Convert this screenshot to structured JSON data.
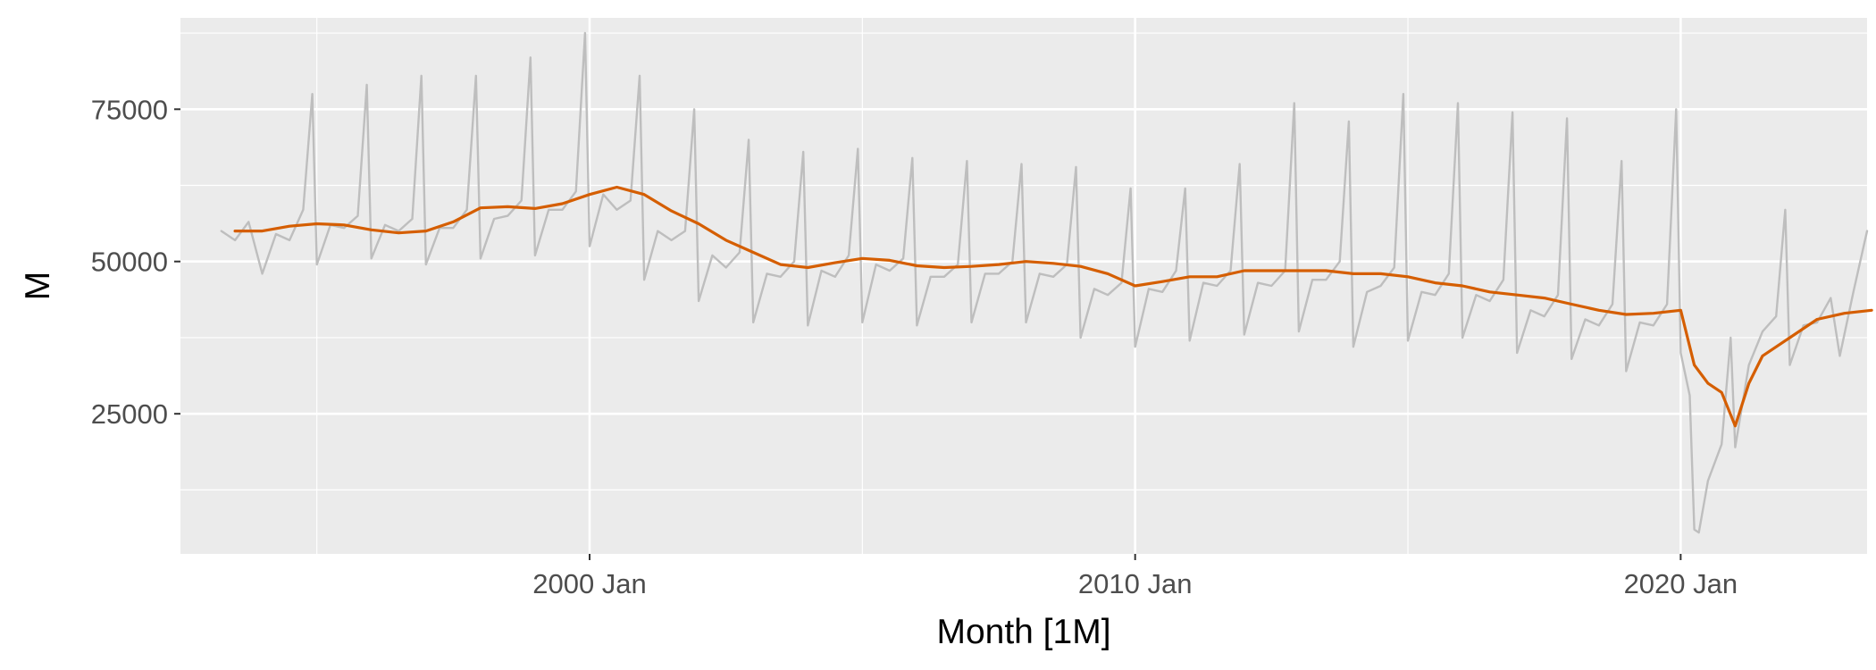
{
  "chart_data": {
    "type": "line",
    "title": "",
    "xlabel": "Month [1M]",
    "ylabel": "M",
    "x_range": [
      "1992 Jul",
      "2023 Jun"
    ],
    "ylim": [
      2000,
      90000
    ],
    "x_ticks": [
      {
        "label": "2000 Jan",
        "year": 2000.0
      },
      {
        "label": "2010 Jan",
        "year": 2010.0
      },
      {
        "label": "2020 Jan",
        "year": 2020.0
      }
    ],
    "y_ticks": [
      25000,
      50000,
      75000
    ],
    "grid": true,
    "legend": "none",
    "colors": {
      "panel": "#ebebeb",
      "grid": "#ffffff",
      "raw": "#bebebe",
      "trend": "#d55e00"
    },
    "series": [
      {
        "role": "observed",
        "color": "#bebebe",
        "points": [
          [
            "1993 Apr",
            55000
          ],
          [
            "1993 Jul",
            53500
          ],
          [
            "1993 Oct",
            56500
          ],
          [
            "1994 Jan",
            48000
          ],
          [
            "1994 Apr",
            54500
          ],
          [
            "1994 Jul",
            53500
          ],
          [
            "1994 Oct",
            58500
          ],
          [
            "1994 Dec",
            77500
          ],
          [
            "1995 Jan",
            49500
          ],
          [
            "1995 Apr",
            56000
          ],
          [
            "1995 Jul",
            55500
          ],
          [
            "1995 Oct",
            57500
          ],
          [
            "1995 Dec",
            79000
          ],
          [
            "1996 Jan",
            50500
          ],
          [
            "1996 Apr",
            56000
          ],
          [
            "1996 Jul",
            55000
          ],
          [
            "1996 Oct",
            57000
          ],
          [
            "1996 Dec",
            80500
          ],
          [
            "1997 Jan",
            49500
          ],
          [
            "1997 Apr",
            55500
          ],
          [
            "1997 Jul",
            55500
          ],
          [
            "1997 Oct",
            58500
          ],
          [
            "1997 Dec",
            80500
          ],
          [
            "1998 Jan",
            50500
          ],
          [
            "1998 Apr",
            57000
          ],
          [
            "1998 Jul",
            57500
          ],
          [
            "1998 Oct",
            60000
          ],
          [
            "1998 Dec",
            83500
          ],
          [
            "1999 Jan",
            51000
          ],
          [
            "1999 Apr",
            58500
          ],
          [
            "1999 Jul",
            58500
          ],
          [
            "1999 Oct",
            61500
          ],
          [
            "1999 Dec",
            87500
          ],
          [
            "2000 Jan",
            52500
          ],
          [
            "2000 Apr",
            61000
          ],
          [
            "2000 Jul",
            58500
          ],
          [
            "2000 Oct",
            60000
          ],
          [
            "2000 Dec",
            80500
          ],
          [
            "2001 Jan",
            47000
          ],
          [
            "2001 Apr",
            55000
          ],
          [
            "2001 Jul",
            53500
          ],
          [
            "2001 Oct",
            55000
          ],
          [
            "2001 Dec",
            75000
          ],
          [
            "2002 Jan",
            43500
          ],
          [
            "2002 Apr",
            51000
          ],
          [
            "2002 Jul",
            49000
          ],
          [
            "2002 Oct",
            51500
          ],
          [
            "2002 Dec",
            70000
          ],
          [
            "2003 Jan",
            40000
          ],
          [
            "2003 Apr",
            48000
          ],
          [
            "2003 Jul",
            47500
          ],
          [
            "2003 Oct",
            50000
          ],
          [
            "2003 Dec",
            68000
          ],
          [
            "2004 Jan",
            39500
          ],
          [
            "2004 Apr",
            48500
          ],
          [
            "2004 Jul",
            47500
          ],
          [
            "2004 Oct",
            51000
          ],
          [
            "2004 Dec",
            68500
          ],
          [
            "2005 Jan",
            40000
          ],
          [
            "2005 Apr",
            49500
          ],
          [
            "2005 Jul",
            48500
          ],
          [
            "2005 Oct",
            50500
          ],
          [
            "2005 Dec",
            67000
          ],
          [
            "2006 Jan",
            39500
          ],
          [
            "2006 Apr",
            47500
          ],
          [
            "2006 Jul",
            47500
          ],
          [
            "2006 Oct",
            49500
          ],
          [
            "2006 Dec",
            66500
          ],
          [
            "2007 Jan",
            40000
          ],
          [
            "2007 Apr",
            48000
          ],
          [
            "2007 Jul",
            48000
          ],
          [
            "2007 Oct",
            50000
          ],
          [
            "2007 Dec",
            66000
          ],
          [
            "2008 Jan",
            40000
          ],
          [
            "2008 Apr",
            48000
          ],
          [
            "2008 Jul",
            47500
          ],
          [
            "2008 Oct",
            49500
          ],
          [
            "2008 Dec",
            65500
          ],
          [
            "2009 Jan",
            37500
          ],
          [
            "2009 Apr",
            45500
          ],
          [
            "2009 Jul",
            44500
          ],
          [
            "2009 Oct",
            46500
          ],
          [
            "2009 Dec",
            62000
          ],
          [
            "2010 Jan",
            36000
          ],
          [
            "2010 Apr",
            45500
          ],
          [
            "2010 Jul",
            45000
          ],
          [
            "2010 Oct",
            48500
          ],
          [
            "2010 Dec",
            62000
          ],
          [
            "2011 Jan",
            37000
          ],
          [
            "2011 Apr",
            46500
          ],
          [
            "2011 Jul",
            46000
          ],
          [
            "2011 Oct",
            48500
          ],
          [
            "2011 Dec",
            66000
          ],
          [
            "2012 Jan",
            38000
          ],
          [
            "2012 Apr",
            46500
          ],
          [
            "2012 Jul",
            46000
          ],
          [
            "2012 Oct",
            48500
          ],
          [
            "2012 Dec",
            76000
          ],
          [
            "2013 Jan",
            38500
          ],
          [
            "2013 Apr",
            47000
          ],
          [
            "2013 Jul",
            47000
          ],
          [
            "2013 Oct",
            50000
          ],
          [
            "2013 Dec",
            73000
          ],
          [
            "2014 Jan",
            36000
          ],
          [
            "2014 Apr",
            45000
          ],
          [
            "2014 Jul",
            46000
          ],
          [
            "2014 Oct",
            49000
          ],
          [
            "2014 Dec",
            77500
          ],
          [
            "2015 Jan",
            37000
          ],
          [
            "2015 Apr",
            45000
          ],
          [
            "2015 Jul",
            44500
          ],
          [
            "2015 Oct",
            48000
          ],
          [
            "2015 Dec",
            76000
          ],
          [
            "2016 Jan",
            37500
          ],
          [
            "2016 Apr",
            44500
          ],
          [
            "2016 Jul",
            43500
          ],
          [
            "2016 Oct",
            47000
          ],
          [
            "2016 Dec",
            74500
          ],
          [
            "2017 Jan",
            35000
          ],
          [
            "2017 Apr",
            42000
          ],
          [
            "2017 Jul",
            41000
          ],
          [
            "2017 Oct",
            44500
          ],
          [
            "2017 Dec",
            73500
          ],
          [
            "2018 Jan",
            34000
          ],
          [
            "2018 Apr",
            40500
          ],
          [
            "2018 Jul",
            39500
          ],
          [
            "2018 Oct",
            43000
          ],
          [
            "2018 Dec",
            66500
          ],
          [
            "2019 Jan",
            32000
          ],
          [
            "2019 Apr",
            40000
          ],
          [
            "2019 Jul",
            39500
          ],
          [
            "2019 Oct",
            43000
          ],
          [
            "2019 Dec",
            75000
          ],
          [
            "2020 Jan",
            35000
          ],
          [
            "2020 Mar",
            28000
          ],
          [
            "2020 Apr",
            6000
          ],
          [
            "2020 May",
            5500
          ],
          [
            "2020 Jul",
            14000
          ],
          [
            "2020 Oct",
            20000
          ],
          [
            "2020 Dec",
            37500
          ],
          [
            "2021 Jan",
            19500
          ],
          [
            "2021 Apr",
            33000
          ],
          [
            "2021 Jul",
            38500
          ],
          [
            "2021 Oct",
            41000
          ],
          [
            "2021 Dec",
            58500
          ],
          [
            "2022 Jan",
            33000
          ],
          [
            "2022 Apr",
            39500
          ],
          [
            "2022 Jul",
            40000
          ],
          [
            "2022 Oct",
            44000
          ],
          [
            "2022 Dec",
            34500
          ],
          [
            "2023 Mar",
            45000
          ],
          [
            "2023 Jun",
            55000
          ]
        ]
      },
      {
        "role": "trend",
        "color": "#d55e00",
        "points": [
          [
            "1993 Jul",
            55000
          ],
          [
            "1994 Jan",
            55000
          ],
          [
            "1994 Jul",
            55800
          ],
          [
            "1995 Jan",
            56200
          ],
          [
            "1995 Jul",
            56000
          ],
          [
            "1996 Jan",
            55200
          ],
          [
            "1996 Jul",
            54700
          ],
          [
            "1997 Jan",
            55000
          ],
          [
            "1997 Jul",
            56500
          ],
          [
            "1998 Jan",
            58800
          ],
          [
            "1998 Jul",
            59000
          ],
          [
            "1999 Jan",
            58700
          ],
          [
            "1999 Jul",
            59500
          ],
          [
            "2000 Jan",
            61000
          ],
          [
            "2000 Jul",
            62200
          ],
          [
            "2001 Jan",
            61000
          ],
          [
            "2001 Jul",
            58300
          ],
          [
            "2002 Jan",
            56200
          ],
          [
            "2002 Jul",
            53500
          ],
          [
            "2003 Jan",
            51500
          ],
          [
            "2003 Jul",
            49500
          ],
          [
            "2004 Jan",
            49000
          ],
          [
            "2004 Jul",
            49800
          ],
          [
            "2005 Jan",
            50500
          ],
          [
            "2005 Jul",
            50200
          ],
          [
            "2006 Jan",
            49300
          ],
          [
            "2006 Jul",
            49000
          ],
          [
            "2007 Jan",
            49200
          ],
          [
            "2007 Jul",
            49500
          ],
          [
            "2008 Jan",
            50000
          ],
          [
            "2008 Jul",
            49700
          ],
          [
            "2009 Jan",
            49200
          ],
          [
            "2009 Jul",
            48000
          ],
          [
            "2010 Jan",
            46000
          ],
          [
            "2010 Jul",
            46700
          ],
          [
            "2011 Jan",
            47500
          ],
          [
            "2011 Jul",
            47500
          ],
          [
            "2012 Jan",
            48500
          ],
          [
            "2012 Jul",
            48500
          ],
          [
            "2013 Jan",
            48500
          ],
          [
            "2013 Jul",
            48500
          ],
          [
            "2014 Jan",
            48000
          ],
          [
            "2014 Jul",
            48000
          ],
          [
            "2015 Jan",
            47500
          ],
          [
            "2015 Jul",
            46500
          ],
          [
            "2016 Jan",
            46000
          ],
          [
            "2016 Jul",
            45000
          ],
          [
            "2017 Jan",
            44500
          ],
          [
            "2017 Jul",
            44000
          ],
          [
            "2018 Jan",
            43000
          ],
          [
            "2018 Jul",
            42000
          ],
          [
            "2019 Jan",
            41300
          ],
          [
            "2019 Jul",
            41500
          ],
          [
            "2020 Jan",
            42000
          ],
          [
            "2020 Apr",
            33000
          ],
          [
            "2020 Jul",
            30000
          ],
          [
            "2020 Oct",
            28500
          ],
          [
            "2021 Jan",
            23000
          ],
          [
            "2021 Apr",
            30000
          ],
          [
            "2021 Jul",
            34500
          ],
          [
            "2022 Jan",
            37500
          ],
          [
            "2022 Jul",
            40500
          ],
          [
            "2023 Jan",
            41500
          ],
          [
            "2023 Jul",
            42000
          ]
        ]
      }
    ]
  }
}
